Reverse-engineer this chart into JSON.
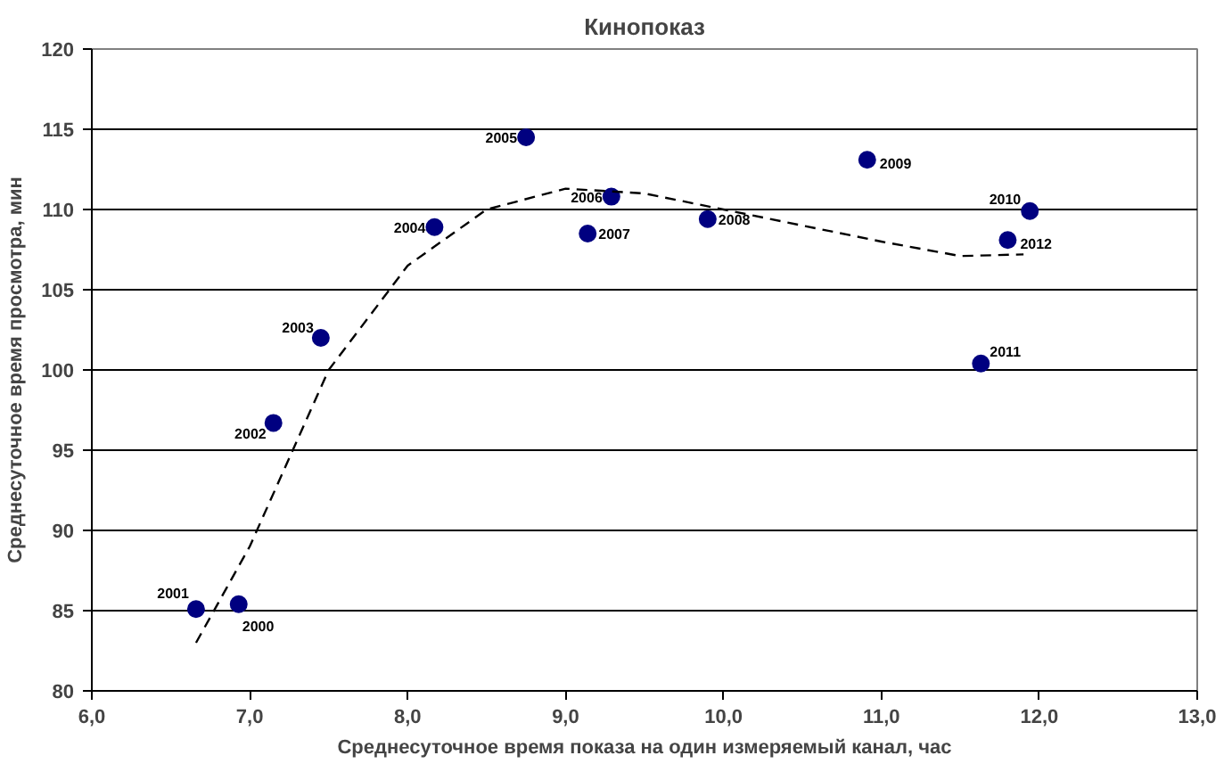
{
  "chart_data": {
    "type": "scatter",
    "title": "Кинопоказ",
    "xlabel": "Среднесуточное время показа на один измеряемый канал, час",
    "ylabel": "Среднесуточное время просмотра, мин",
    "xlim": [
      6,
      13
    ],
    "ylim": [
      80,
      120
    ],
    "xticks": [
      {
        "value": 6,
        "label": "6,0"
      },
      {
        "value": 7,
        "label": "7,0"
      },
      {
        "value": 8,
        "label": "8,0"
      },
      {
        "value": 9,
        "label": "9,0"
      },
      {
        "value": 10,
        "label": "10,0"
      },
      {
        "value": 11,
        "label": "11,0"
      },
      {
        "value": 12,
        "label": "12,0"
      },
      {
        "value": 13,
        "label": "13,0"
      }
    ],
    "yticks": [
      80,
      85,
      90,
      95,
      100,
      105,
      110,
      115,
      120
    ],
    "grid": "y",
    "marker": "circle",
    "series": [
      {
        "color": "#000080",
        "x": [
          6.93,
          6.66,
          7.15,
          7.45,
          8.17,
          8.75,
          9.29,
          9.14,
          9.9,
          10.91,
          11.94,
          11.63,
          11.8
        ],
        "values": [
          85.4,
          85.1,
          96.7,
          102.0,
          108.9,
          114.5,
          110.8,
          108.5,
          109.4,
          113.1,
          109.9,
          100.4,
          108.1
        ]
      },
      {
        "type": "line",
        "color": "#000000",
        "line_style": "dashed",
        "marker": "none",
        "x": [
          6.66,
          7.0,
          7.5,
          8.0,
          8.5,
          9.0,
          9.5,
          10.0,
          10.5,
          11.0,
          11.5,
          11.9
        ],
        "values": [
          83,
          89,
          100,
          106.5,
          110,
          111.3,
          111,
          110,
          109,
          108,
          107.1,
          107.2
        ]
      }
    ],
    "annotations": [
      {
        "text": "2000",
        "x": 6.93,
        "y": 85.4
      },
      {
        "text": "2001",
        "x": 6.66,
        "y": 85.1
      },
      {
        "text": "2002",
        "x": 7.15,
        "y": 96.7
      },
      {
        "text": "2003",
        "x": 7.45,
        "y": 102.0
      },
      {
        "text": "2004",
        "x": 8.17,
        "y": 108.9
      },
      {
        "text": "2005",
        "x": 8.75,
        "y": 114.5
      },
      {
        "text": "2006",
        "x": 9.29,
        "y": 110.8
      },
      {
        "text": "2007",
        "x": 9.14,
        "y": 108.5
      },
      {
        "text": "2008",
        "x": 9.9,
        "y": 109.4
      },
      {
        "text": "2009",
        "x": 10.91,
        "y": 113.1
      },
      {
        "text": "2010",
        "x": 11.94,
        "y": 109.9
      },
      {
        "text": "2011",
        "x": 11.63,
        "y": 100.4
      },
      {
        "text": "2012",
        "x": 11.8,
        "y": 108.1
      }
    ]
  }
}
